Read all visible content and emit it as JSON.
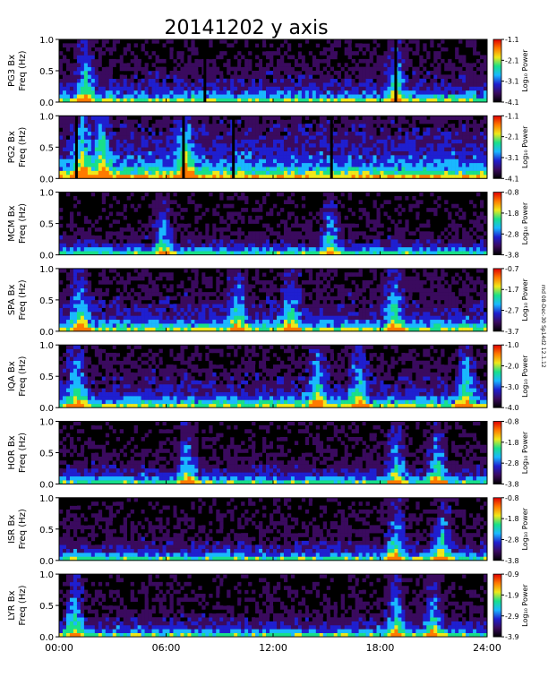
{
  "chart_data": {
    "type": "heatmap",
    "title": "20141202  y axis",
    "x_ticks": [
      "00:00",
      "06:00",
      "12:00",
      "18:00",
      "24:00"
    ],
    "xlim_hours": [
      0,
      24
    ],
    "y_ticks": [
      "0.0",
      "0.5",
      "1.0"
    ],
    "ylim_hz": [
      0,
      1.0
    ],
    "colorbar_label": "Log₁₀ Power",
    "colormap": [
      "#000000",
      "#3a0a5e",
      "#1f1fd0",
      "#1ab8ff",
      "#19e08a",
      "#f0e81a",
      "#ff7a00",
      "#e00000"
    ],
    "panels": [
      {
        "station": "PG3 Bx",
        "ylabel2": "Freq (Hz)",
        "cbar_ticks": [
          "-1.1",
          "-2.1",
          "-3.1",
          "-4.1"
        ],
        "brightness": 0.45,
        "gaps_hours": [
          8.1,
          18.8
        ],
        "bursts_hours": [
          1.5,
          18.9
        ]
      },
      {
        "station": "PG2 Bx",
        "ylabel2": "Freq (Hz)",
        "cbar_ticks": [
          "-1.1",
          "-2.1",
          "-3.1",
          "-4.1"
        ],
        "brightness": 0.75,
        "gaps_hours": [
          0.9,
          6.9,
          9.7,
          15.2
        ],
        "bursts_hours": [
          1.3,
          2.4,
          7.1
        ]
      },
      {
        "station": "MCM Bx",
        "ylabel2": "Freq (Hz)",
        "cbar_ticks": [
          "-0.8",
          "-1.8",
          "-2.8",
          "-3.8"
        ],
        "brightness": 0.3,
        "gaps_hours": [],
        "bursts_hours": [
          5.8,
          15.2
        ]
      },
      {
        "station": "SPA Bx",
        "ylabel2": "Freq (Hz)",
        "cbar_ticks": [
          "-0.7",
          "-1.7",
          "-2.7",
          "-3.7"
        ],
        "brightness": 0.5,
        "gaps_hours": [],
        "bursts_hours": [
          1.2,
          10.0,
          13.0,
          18.8
        ]
      },
      {
        "station": "IQA Bx",
        "ylabel2": "Freq (Hz)",
        "cbar_ticks": [
          "-1.0",
          "-2.0",
          "-3.0",
          "-4.0"
        ],
        "brightness": 0.5,
        "gaps_hours": [],
        "bursts_hours": [
          1.0,
          14.5,
          16.8,
          22.8
        ]
      },
      {
        "station": "HOR Bx",
        "ylabel2": "Freq (Hz)",
        "cbar_ticks": [
          "-0.8",
          "-1.8",
          "-2.8",
          "-3.8"
        ],
        "brightness": 0.35,
        "gaps_hours": [],
        "bursts_hours": [
          7.2,
          18.9,
          21.2
        ]
      },
      {
        "station": "ISR Bx",
        "ylabel2": "Freq (Hz)",
        "cbar_ticks": [
          "-0.8",
          "-1.8",
          "-2.8",
          "-3.8"
        ],
        "brightness": 0.35,
        "gaps_hours": [],
        "bursts_hours": [
          18.9,
          21.5
        ]
      },
      {
        "station": "LYR Bx",
        "ylabel2": "Freq (Hz)",
        "cbar_ticks": [
          "-0.9",
          "-1.9",
          "-2.9",
          "-3.9"
        ],
        "brightness": 0.35,
        "gaps_hours": [],
        "bursts_hours": [
          0.9,
          18.9,
          21.0
        ]
      }
    ]
  },
  "side_note": "rnd 08-Dec-30 Sp14d2 12.1.12"
}
